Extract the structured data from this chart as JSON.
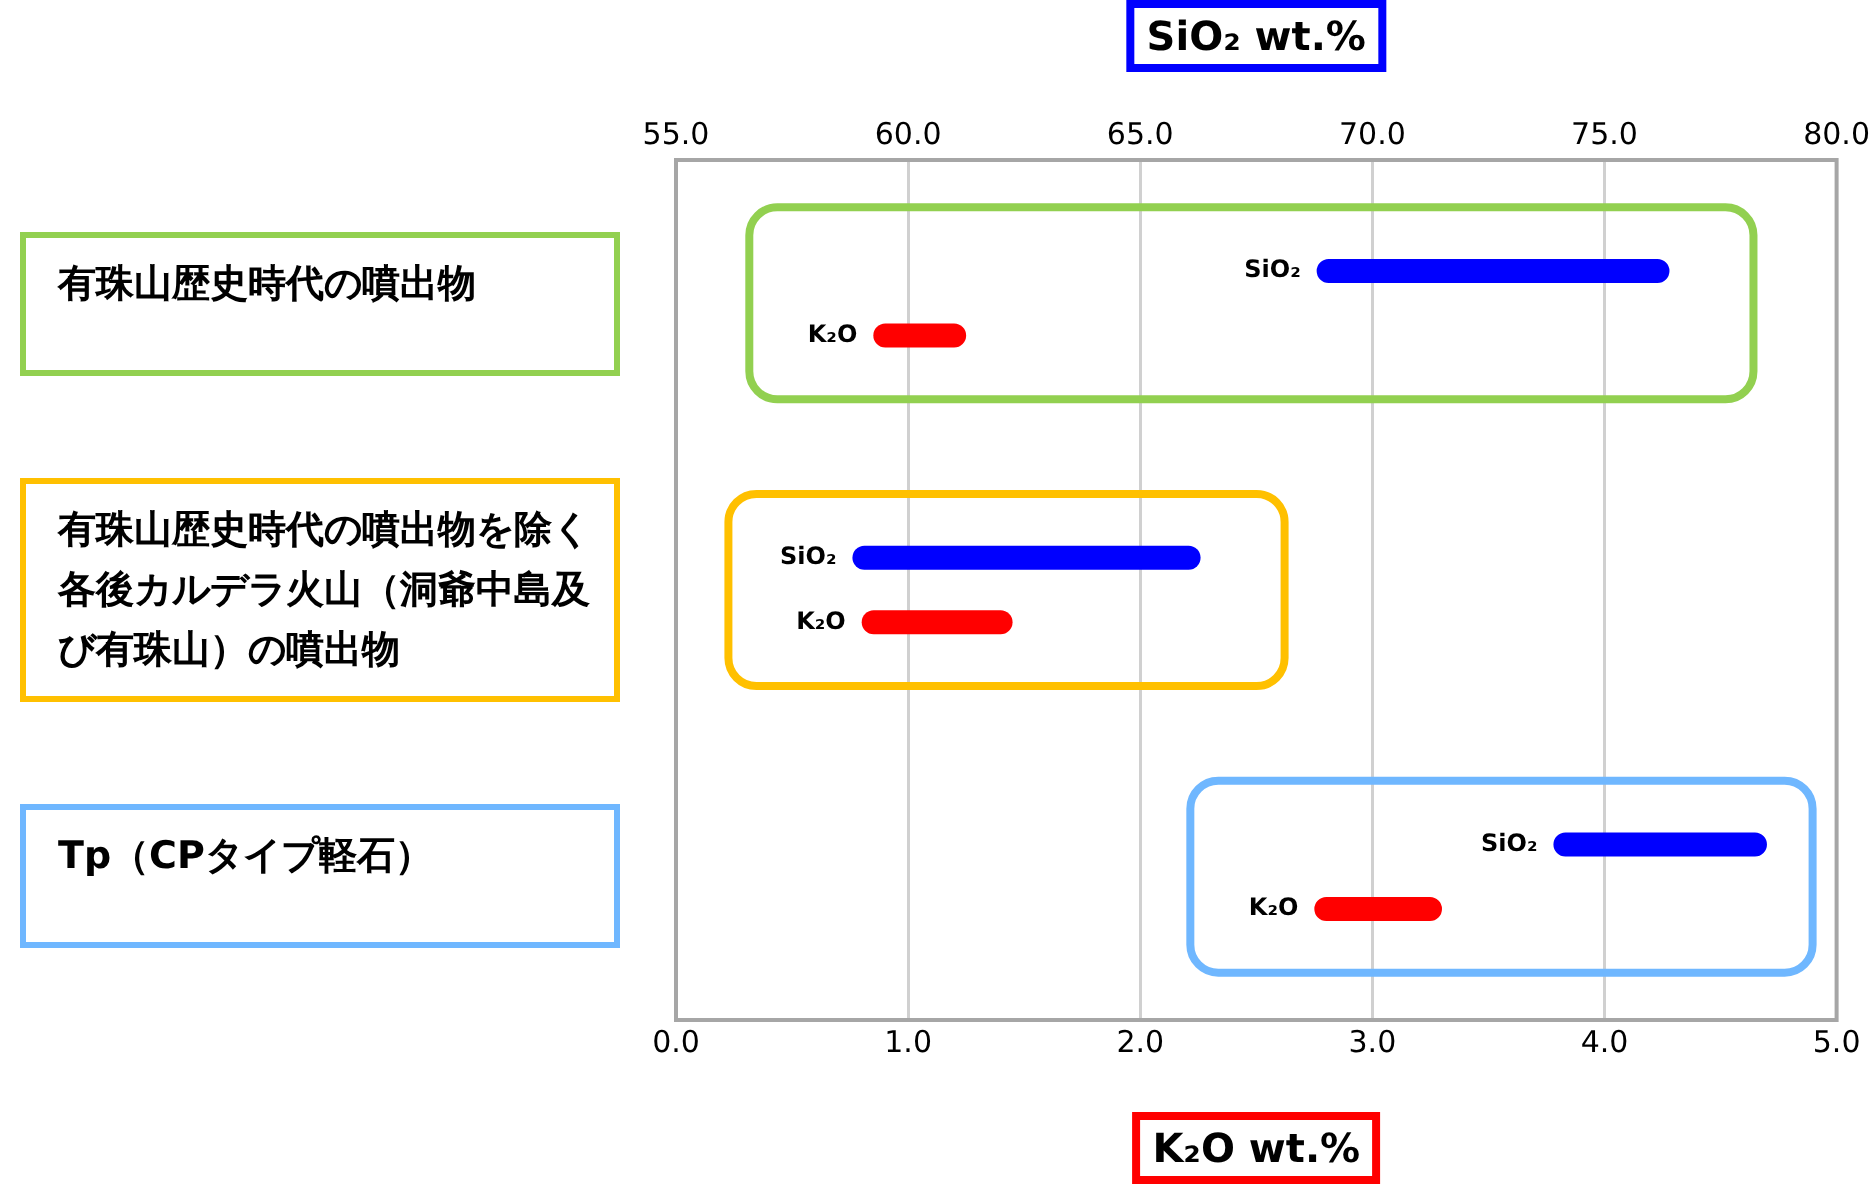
{
  "chart_data": {
    "type": "bar",
    "orientation": "horizontal",
    "xlabel": "K₂O wt.%",
    "x2label": "SiO₂ wt.%",
    "categories": [
      "有珠山歴史時代の噴出物",
      "有珠山歴史時代の噴出物を除く各後カルデラ火山（洞爺中島及び有珠山）の噴出物",
      "Tp（CPタイプ軽石）"
    ],
    "series": [
      {
        "name": "SiO₂",
        "color": "#0000ff",
        "axis": "x2",
        "base": [
          68.8,
          58.8,
          73.9
        ],
        "values": [
          7.6,
          7.5,
          4.6
        ]
      },
      {
        "name": "K₂O",
        "color": "#ff0000",
        "base": [
          0.85,
          0.8,
          2.75
        ],
        "values": [
          0.4,
          0.65,
          0.55
        ]
      }
    ],
    "xlim": [
      0,
      5
    ],
    "xticks": [
      {
        "value": 0,
        "label": "0.0"
      },
      {
        "value": 1,
        "label": "1.0"
      },
      {
        "value": 2,
        "label": "2.0"
      },
      {
        "value": 3,
        "label": "3.0"
      },
      {
        "value": 4,
        "label": "4.0"
      },
      {
        "value": 5,
        "label": "5.0"
      }
    ],
    "x2lim": [
      55,
      80
    ],
    "x2ticks": [
      {
        "value": 55,
        "label": "55.0"
      },
      {
        "value": 60,
        "label": "60.0"
      },
      {
        "value": 65,
        "label": "65.0"
      },
      {
        "value": 70,
        "label": "70.0"
      },
      {
        "value": 75,
        "label": "75.0"
      },
      {
        "value": 80,
        "label": "80.0"
      }
    ],
    "grid": "x",
    "legend": false,
    "tick_labels": "x"
  }
}
